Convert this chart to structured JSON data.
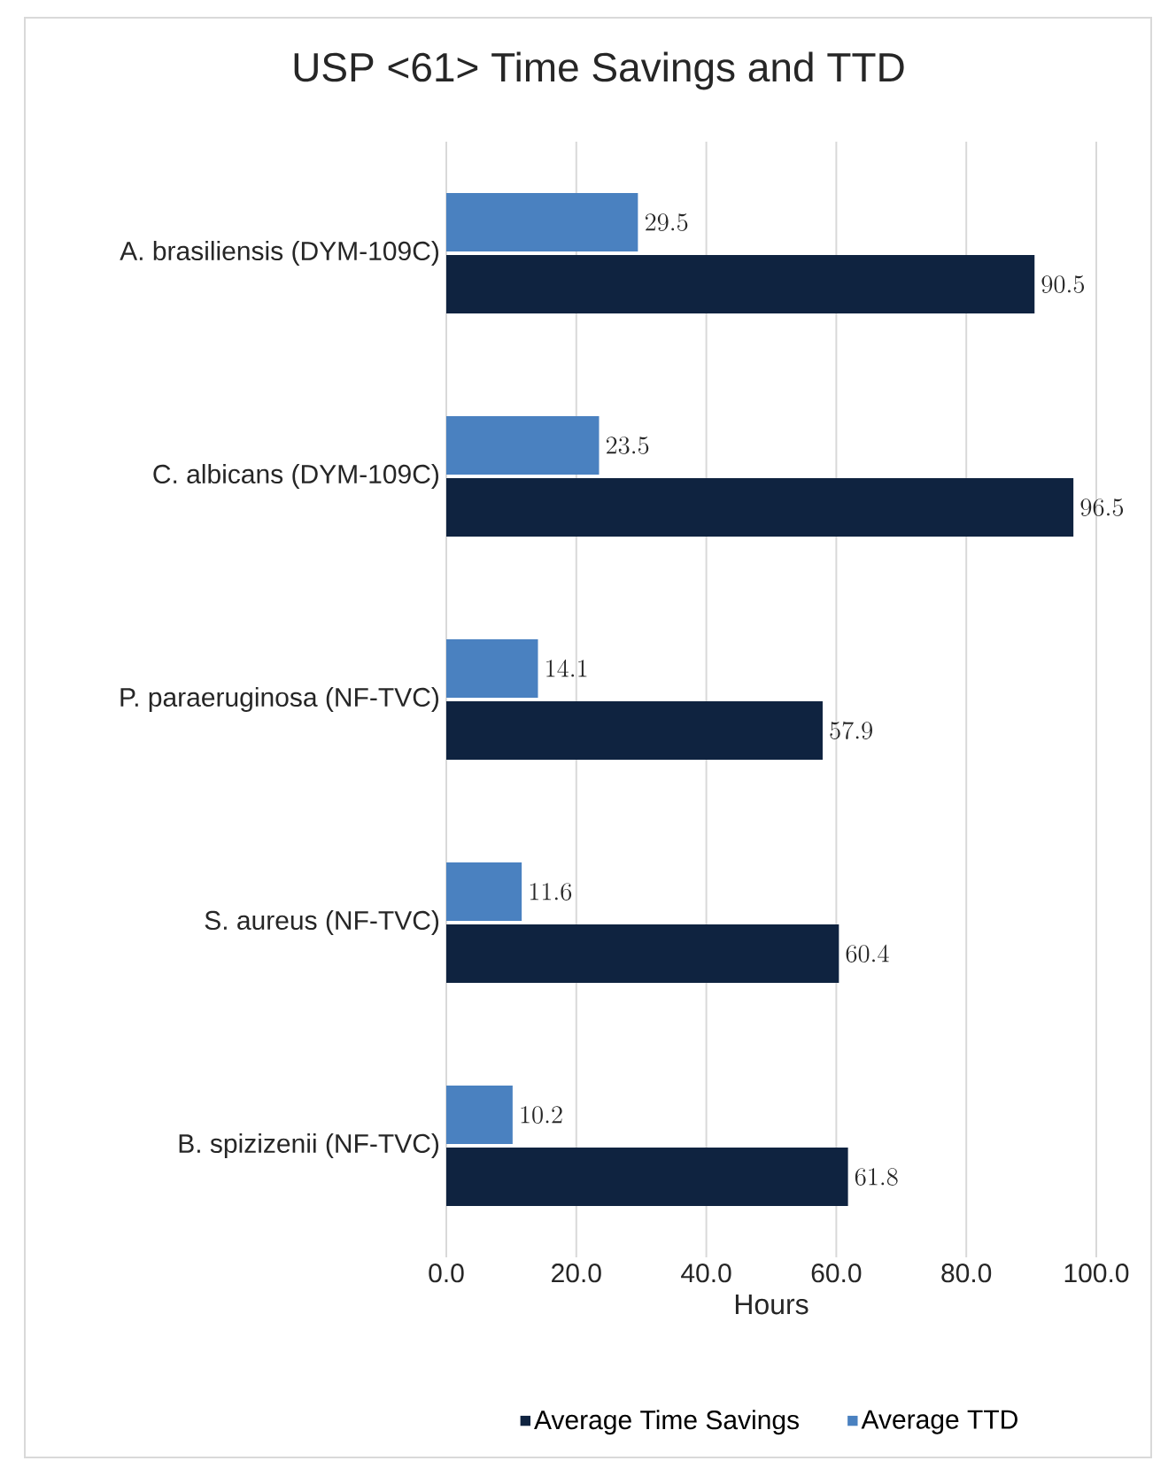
{
  "chart_data": {
    "type": "bar",
    "orientation": "horizontal",
    "title": "USP <61> Time Savings and TTD",
    "xlabel": "Hours",
    "categories": [
      "A. brasiliensis (DYM-109C)",
      "C. albicans (DYM-109C)",
      "P. paraeruginosa (NF-TVC)",
      "S. aureus (NF-TVC)",
      "B. spizizenii (NF-TVC)"
    ],
    "series": [
      {
        "name": "Average Time Savings",
        "color": "#0f2340",
        "values": [
          90.5,
          96.5,
          57.9,
          60.4,
          61.8
        ]
      },
      {
        "name": "Average TTD",
        "color": "#4a81c0",
        "values": [
          29.5,
          23.5,
          14.1,
          11.6,
          10.2
        ]
      }
    ],
    "xlim": [
      0,
      100
    ],
    "xticks": [
      {
        "value": 0,
        "label": "0.0"
      },
      {
        "value": 20,
        "label": "20.0"
      },
      {
        "value": 40,
        "label": "40.0"
      },
      {
        "value": 60,
        "label": "60.0"
      },
      {
        "value": 80,
        "label": "80.0"
      },
      {
        "value": 100,
        "label": "100.0"
      }
    ],
    "grid": "x",
    "legend": "bottom",
    "data_labels": true
  }
}
